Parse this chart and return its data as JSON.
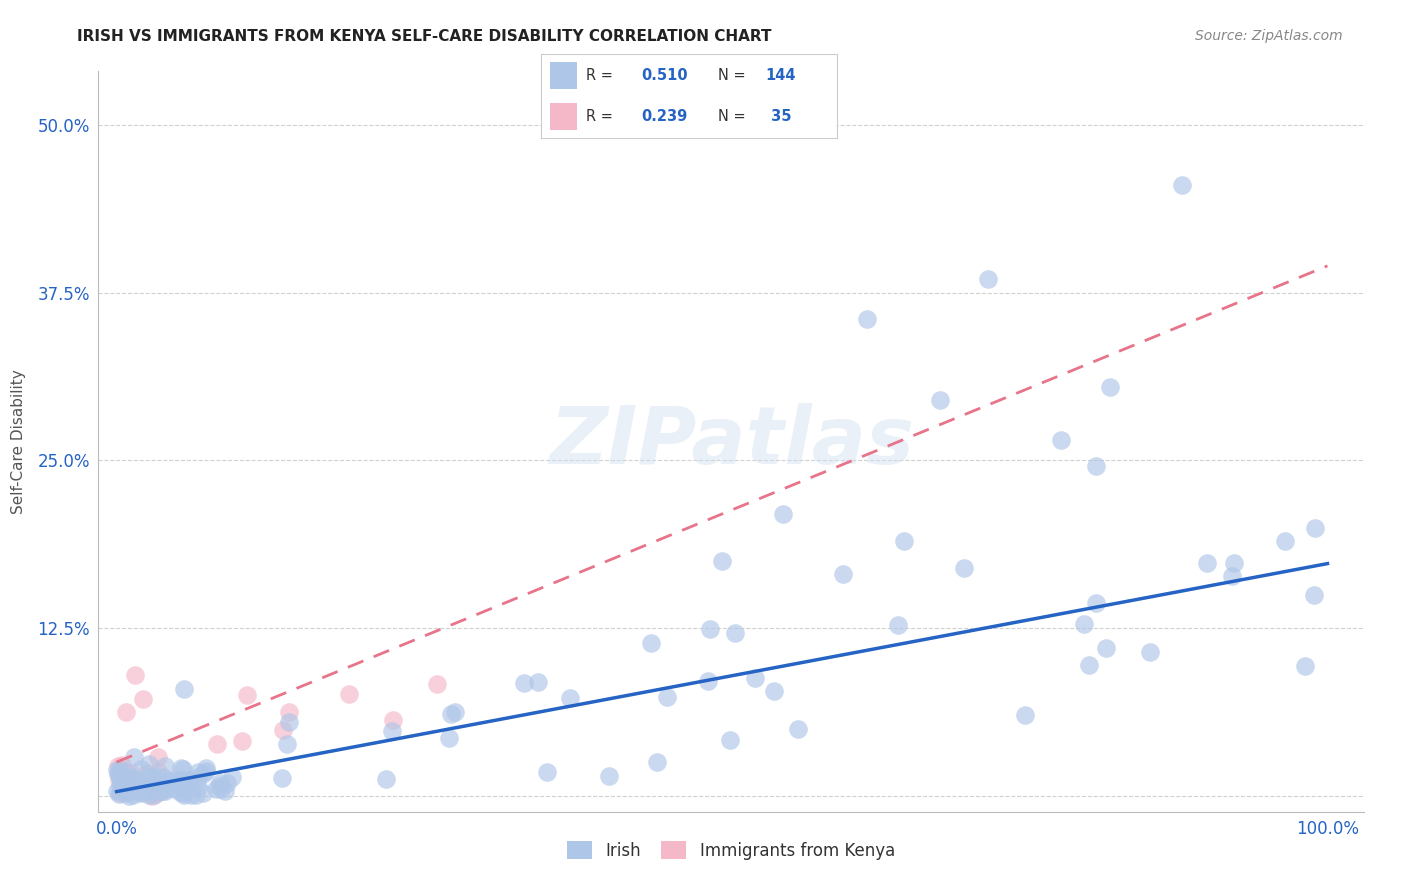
{
  "title": "IRISH VS IMMIGRANTS FROM KENYA SELF-CARE DISABILITY CORRELATION CHART",
  "source": "Source: ZipAtlas.com",
  "ylabel": "Self-Care Disability",
  "irish_color": "#aec6e8",
  "kenya_color": "#f4b8c8",
  "irish_line_color": "#2563c4",
  "kenya_line_color": "#e8748a",
  "irish_R": 0.51,
  "irish_N": 144,
  "kenya_R": 0.239,
  "kenya_N": 35,
  "legend_irish_label": "Irish",
  "legend_kenya_label": "Immigrants from Kenya",
  "watermark_text": "ZIPatlas",
  "background_color": "#ffffff",
  "title_color": "#222222",
  "source_color": "#888888",
  "tick_color": "#2563c4",
  "ylabel_color": "#555555",
  "grid_color": "#cccccc",
  "legend_border_color": "#cccccc",
  "irish_scatter_size": 180,
  "kenya_scatter_size": 180,
  "irish_alpha": 0.65,
  "kenya_alpha": 0.65
}
